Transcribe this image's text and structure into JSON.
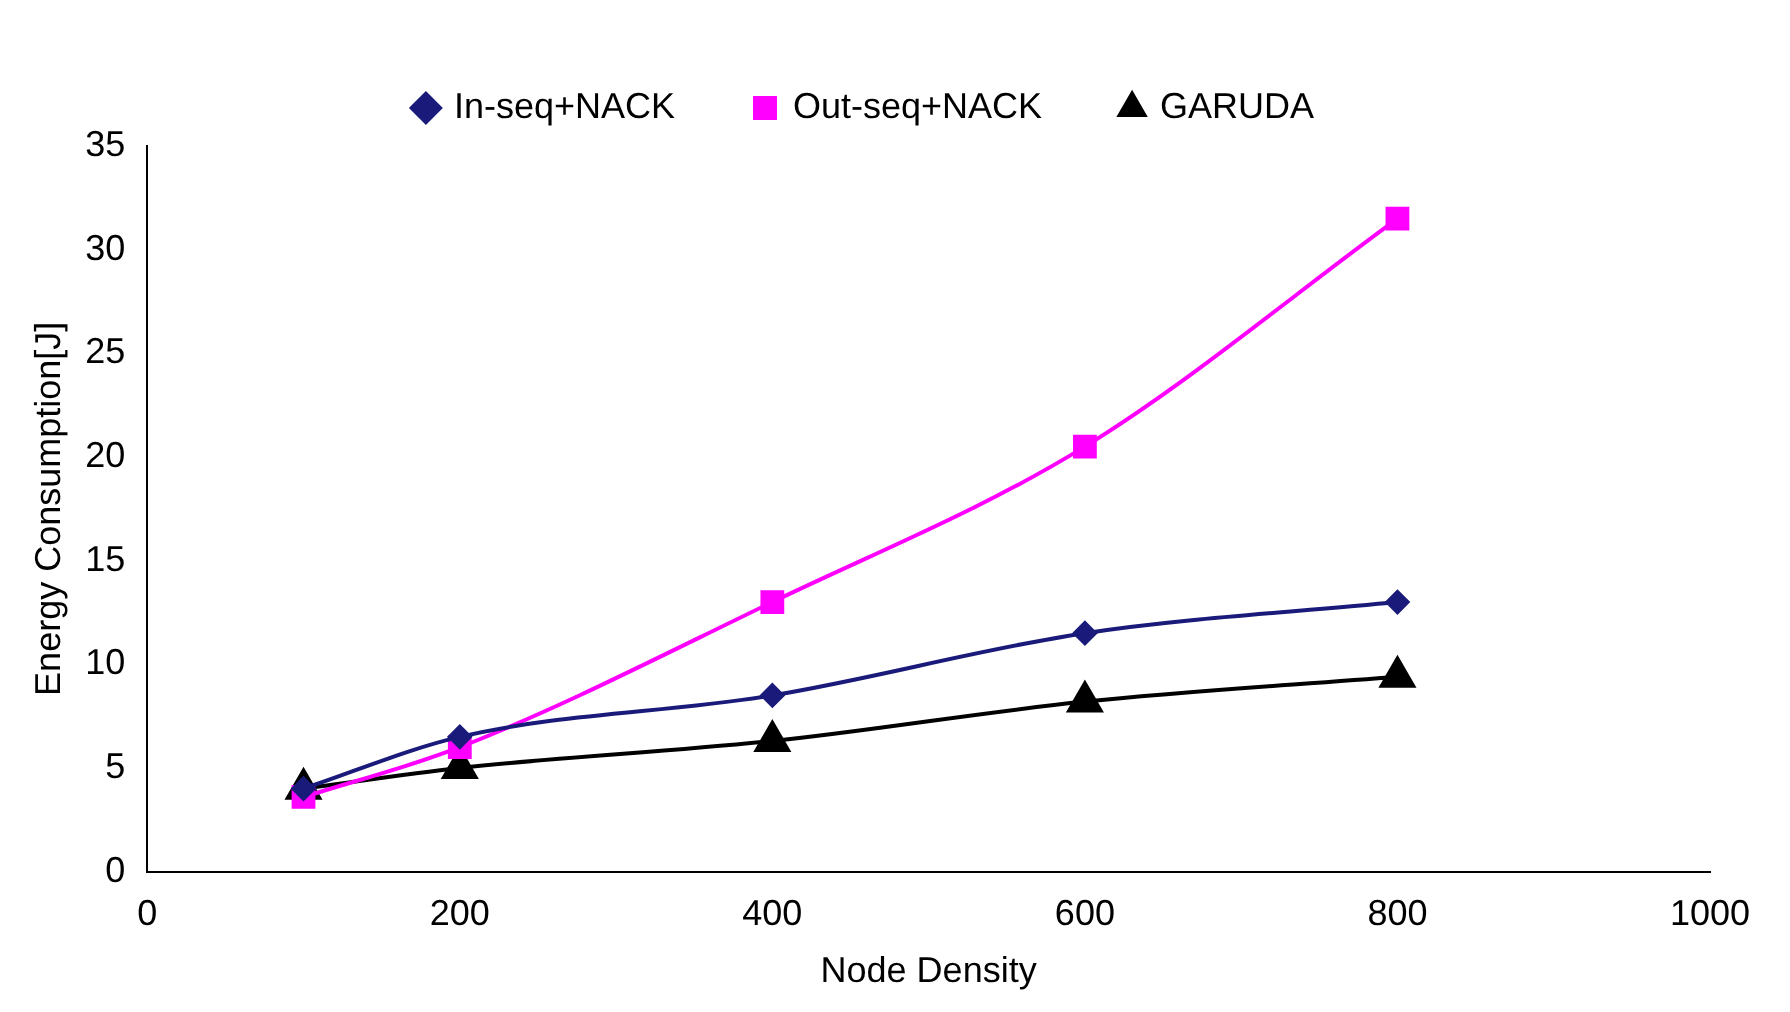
{
  "chart_data": {
    "type": "line",
    "xlabel": "Node Density",
    "ylabel": "Energy Consumption[J]",
    "x": [
      100,
      200,
      400,
      600,
      800
    ],
    "series": [
      {
        "name": "In-seq+NACK",
        "color": "#1a1a7a",
        "marker": "diamond",
        "values": [
          4,
          6.5,
          8.5,
          11.5,
          13
        ]
      },
      {
        "name": "Out-seq+NACK",
        "color": "#ff00ff",
        "marker": "square",
        "values": [
          3.6,
          6,
          13,
          20.5,
          31.5
        ]
      },
      {
        "name": "GARUDA",
        "color": "#000000",
        "marker": "triangle",
        "values": [
          4,
          5,
          6.3,
          8.2,
          9.4
        ]
      }
    ],
    "xlim": [
      0,
      1000
    ],
    "xticks": [
      0,
      200,
      400,
      600,
      800,
      1000
    ],
    "ylim": [
      0,
      35
    ],
    "yticks": [
      0,
      5,
      10,
      15,
      20,
      25,
      30,
      35
    ],
    "grid": false,
    "legend": "top",
    "line_style": "solid"
  }
}
